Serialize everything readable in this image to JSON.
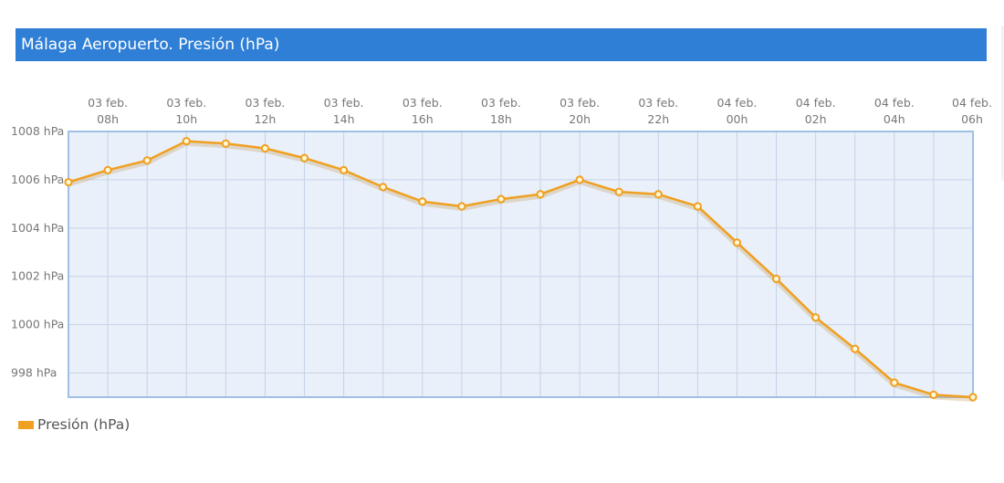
{
  "header": {
    "title": "Málaga Aeropuerto. Presión (hPa)"
  },
  "colors": {
    "header_bg": "#2f7fd6",
    "plot_bg": "#e9f0fa",
    "grid": "#c5d3e6",
    "line": "#f0a020",
    "point_fill": "#fff7d8"
  },
  "chart_data": {
    "type": "line",
    "title": "Málaga Aeropuerto. Presión (hPa)",
    "xlabel": "",
    "ylabel": "",
    "x_tick_labels": [
      [
        "03 feb.",
        "08h"
      ],
      [
        "03 feb.",
        "10h"
      ],
      [
        "03 feb.",
        "12h"
      ],
      [
        "03 feb.",
        "14h"
      ],
      [
        "03 feb.",
        "16h"
      ],
      [
        "03 feb.",
        "18h"
      ],
      [
        "03 feb.",
        "20h"
      ],
      [
        "03 feb.",
        "22h"
      ],
      [
        "04 feb.",
        "00h"
      ],
      [
        "04 feb.",
        "02h"
      ],
      [
        "04 feb.",
        "04h"
      ],
      [
        "04 feb.",
        "06h"
      ]
    ],
    "y_tick_labels": [
      "1008 hPa",
      "1006 hPa",
      "1004 hPa",
      "1002 hPa",
      "1000 hPa",
      "998 hPa"
    ],
    "y_ticks": [
      1008,
      1006,
      1004,
      1002,
      1000,
      998
    ],
    "ylim": [
      997,
      1008
    ],
    "x": [
      "03 feb. 07h",
      "03 feb. 08h",
      "03 feb. 09h",
      "03 feb. 10h",
      "03 feb. 11h",
      "03 feb. 12h",
      "03 feb. 13h",
      "03 feb. 14h",
      "03 feb. 15h",
      "03 feb. 16h",
      "03 feb. 17h",
      "03 feb. 18h",
      "03 feb. 19h",
      "03 feb. 20h",
      "03 feb. 21h",
      "03 feb. 22h",
      "03 feb. 23h",
      "04 feb. 00h",
      "04 feb. 01h",
      "04 feb. 02h",
      "04 feb. 03h",
      "04 feb. 04h",
      "04 feb. 05h",
      "04 feb. 06h"
    ],
    "series": [
      {
        "name": "Presión (hPa)",
        "values": [
          1005.9,
          1006.4,
          1006.8,
          1007.6,
          1007.5,
          1007.3,
          1006.9,
          1006.4,
          1005.7,
          1005.1,
          1004.9,
          1005.2,
          1005.4,
          1006.0,
          1005.5,
          1005.4,
          1004.9,
          1003.4,
          1001.9,
          1000.3,
          999.0,
          997.6,
          997.1,
          997.0
        ]
      }
    ],
    "grid": true,
    "legend_position": "bottom-left"
  }
}
